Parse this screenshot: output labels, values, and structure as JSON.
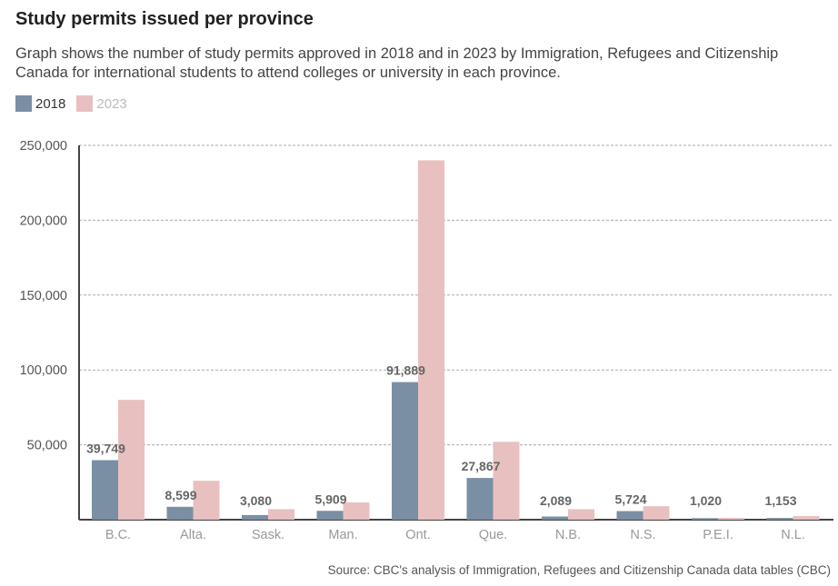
{
  "header": {
    "title": "Study permits issued per province",
    "subtitle": "Graph shows the number of study permits approved in 2018 and in 2023 by Immigration, Refugees and Citizenship Canada for international students to attend colleges or university in each province."
  },
  "footer": {
    "source": "Source: CBC's analysis of Immigration, Refugees and Citizenship Canada data tables (CBC)"
  },
  "colors": {
    "series_2018": "#7a8fa3",
    "series_2023": "#e8c0c0"
  },
  "chart_data": {
    "type": "bar",
    "title": "Study permits issued per province",
    "xlabel": "",
    "ylabel": "",
    "ylim": [
      0,
      250000
    ],
    "yticks": [
      50000,
      100000,
      150000,
      200000,
      250000
    ],
    "ytick_labels": [
      "50,000",
      "100,000",
      "150,000",
      "200,000",
      "250,000"
    ],
    "grid": true,
    "legend_position": "top-left",
    "categories": [
      "B.C.",
      "Alta.",
      "Sask.",
      "Man.",
      "Ont.",
      "Que.",
      "N.B.",
      "N.S.",
      "P.E.I.",
      "N.L."
    ],
    "series": [
      {
        "name": "2018",
        "values": [
          39749,
          8599,
          3080,
          5909,
          91889,
          27867,
          2089,
          5724,
          1020,
          1153
        ],
        "value_labels": [
          "39,749",
          "8,599",
          "3,080",
          "5,909",
          "91,889",
          "27,867",
          "2,089",
          "5,724",
          "1,020",
          "1,153"
        ]
      },
      {
        "name": "2023",
        "values": [
          80000,
          26000,
          7000,
          11500,
          240000,
          52000,
          7000,
          9000,
          1200,
          2400
        ]
      }
    ]
  }
}
